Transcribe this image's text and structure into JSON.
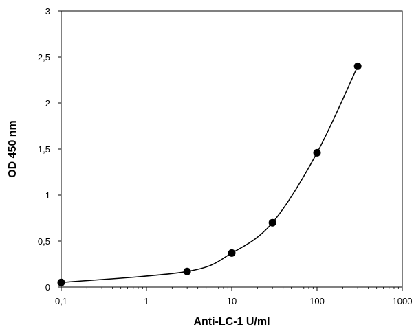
{
  "chart_data": {
    "type": "scatter",
    "title": "",
    "xlabel": "Anti-LC-1 U/ml",
    "ylabel": "OD 450 nm",
    "x_scale": "log",
    "xlim": [
      0.1,
      1000
    ],
    "ylim": [
      0,
      3
    ],
    "x_ticks": [
      0.1,
      1,
      10,
      100,
      1000
    ],
    "x_tick_labels": [
      "0,1",
      "1",
      "10",
      "100",
      "1000"
    ],
    "y_ticks": [
      0,
      0.5,
      1,
      1.5,
      2,
      2.5,
      3
    ],
    "y_tick_labels": [
      "0",
      "0,5",
      "1",
      "1,5",
      "2",
      "2,5",
      "3"
    ],
    "grid": false,
    "legend": "none",
    "line": "smooth curve through points",
    "colors": {
      "points": "#000000",
      "line": "#000000",
      "axes": "#000000"
    },
    "series": [
      {
        "points": [
          {
            "x": 0.1,
            "y": 0.05
          },
          {
            "x": 3,
            "y": 0.17
          },
          {
            "x": 10,
            "y": 0.37
          },
          {
            "x": 30,
            "y": 0.7
          },
          {
            "x": 100,
            "y": 1.46
          },
          {
            "x": 300,
            "y": 2.4
          }
        ]
      }
    ]
  }
}
